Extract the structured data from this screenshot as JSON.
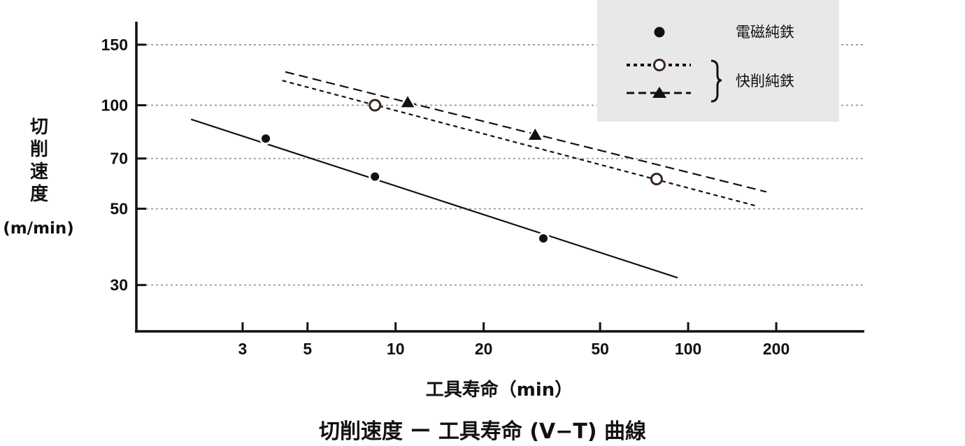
{
  "chart_data": {
    "type": "scatter",
    "title": "切削速度 ー 工具寿命 (V−T) 曲線",
    "xlabel": "工具寿命（min）",
    "ylabel_chars": [
      "切",
      "削",
      "速",
      "度"
    ],
    "ylabel_unit": "(m/min)",
    "xscale": "log",
    "yscale": "log",
    "xlim": [
      1.3,
      400
    ],
    "ylim": [
      22,
      175
    ],
    "xticks": [
      {
        "value": 3,
        "label": "3"
      },
      {
        "value": 5,
        "label": "5"
      },
      {
        "value": 10,
        "label": "10"
      },
      {
        "value": 20,
        "label": "20"
      },
      {
        "value": 50,
        "label": "50"
      },
      {
        "value": 100,
        "label": "100"
      },
      {
        "value": 200,
        "label": "200"
      }
    ],
    "yticks": [
      {
        "value": 30,
        "label": "30"
      },
      {
        "value": 50,
        "label": "50"
      },
      {
        "value": 70,
        "label": "70"
      },
      {
        "value": 100,
        "label": "100"
      },
      {
        "value": 150,
        "label": "150"
      }
    ],
    "grid": "horizontal dotted",
    "series": [
      {
        "name": "電磁純鉄",
        "marker": "filled-circle",
        "line": "solid",
        "points": [
          [
            3.6,
            80
          ],
          [
            8.5,
            62
          ],
          [
            32,
            41
          ]
        ],
        "fit": [
          [
            2.0,
            91
          ],
          [
            92,
            31.5
          ]
        ]
      },
      {
        "name": "快削純鉄 (open circle)",
        "marker": "open-circle",
        "line": "dotted",
        "points": [
          [
            8.5,
            100
          ],
          [
            78,
            61
          ]
        ],
        "fit": [
          [
            4.1,
            118
          ],
          [
            170,
            51
          ]
        ]
      },
      {
        "name": "快削純鉄 (triangle)",
        "marker": "filled-triangle",
        "line": "dashed",
        "points": [
          [
            11,
            102
          ],
          [
            30,
            82
          ]
        ],
        "fit": [
          [
            4.2,
            125
          ],
          [
            185,
            56
          ]
        ]
      }
    ],
    "legend": {
      "position": "top-right",
      "entries": [
        {
          "marker": "filled-circle",
          "line": "none",
          "label": "電磁純鉄"
        },
        {
          "marker": "open-circle",
          "line": "dotted",
          "label": ""
        },
        {
          "marker": "filled-triangle",
          "line": "dashed",
          "label": ""
        }
      ],
      "group_label": "快削純鉄",
      "background": "#e8e8e8"
    }
  }
}
